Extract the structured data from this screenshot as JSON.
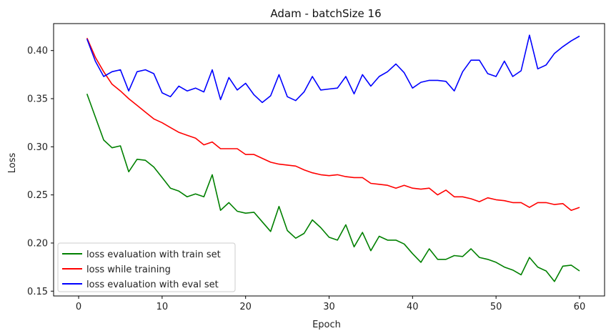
{
  "chart_data": {
    "type": "line",
    "title": "Adam - batchSize 16",
    "xlabel": "Epoch",
    "ylabel": "Loss",
    "xlim": [
      -3,
      63
    ],
    "ylim": [
      0.145,
      0.428
    ],
    "xticks": [
      0,
      10,
      20,
      30,
      40,
      50,
      60
    ],
    "xtick_labels": [
      "0",
      "10",
      "20",
      "30",
      "40",
      "50",
      "60"
    ],
    "yticks": [
      0.15,
      0.2,
      0.25,
      0.3,
      0.35,
      0.4
    ],
    "ytick_labels": [
      "0.15",
      "0.20",
      "0.25",
      "0.30",
      "0.35",
      "0.40"
    ],
    "grid": false,
    "legend_position": "lower-left",
    "x": [
      1,
      2,
      3,
      4,
      5,
      6,
      7,
      8,
      9,
      10,
      11,
      12,
      13,
      14,
      15,
      16,
      17,
      18,
      19,
      20,
      21,
      22,
      23,
      24,
      25,
      26,
      27,
      28,
      29,
      30,
      31,
      32,
      33,
      34,
      35,
      36,
      37,
      38,
      39,
      40,
      41,
      42,
      43,
      44,
      45,
      46,
      47,
      48,
      49,
      50,
      51,
      52,
      53,
      54,
      55,
      56,
      57,
      58,
      59,
      60
    ],
    "series": [
      {
        "name": "loss evaluation with train set",
        "color": "#008000",
        "values": [
          0.355,
          0.331,
          0.307,
          0.299,
          0.301,
          0.274,
          0.287,
          0.286,
          0.279,
          0.268,
          0.257,
          0.254,
          0.248,
          0.251,
          0.248,
          0.271,
          0.234,
          0.242,
          0.233,
          0.231,
          0.232,
          0.222,
          0.212,
          0.238,
          0.213,
          0.205,
          0.21,
          0.224,
          0.216,
          0.206,
          0.203,
          0.219,
          0.196,
          0.211,
          0.192,
          0.207,
          0.203,
          0.203,
          0.199,
          0.189,
          0.18,
          0.194,
          0.183,
          0.183,
          0.187,
          0.186,
          0.194,
          0.185,
          0.183,
          0.18,
          0.175,
          0.172,
          0.167,
          0.185,
          0.175,
          0.171,
          0.16,
          0.176,
          0.177,
          0.171
        ]
      },
      {
        "name": "loss while training",
        "color": "#ff0000",
        "values": [
          0.413,
          0.393,
          0.378,
          0.365,
          0.358,
          0.35,
          0.343,
          0.336,
          0.329,
          0.325,
          0.32,
          0.315,
          0.312,
          0.309,
          0.302,
          0.305,
          0.298,
          0.298,
          0.298,
          0.292,
          0.292,
          0.288,
          0.284,
          0.282,
          0.281,
          0.28,
          0.276,
          0.273,
          0.271,
          0.27,
          0.271,
          0.269,
          0.268,
          0.268,
          0.262,
          0.261,
          0.26,
          0.257,
          0.26,
          0.257,
          0.256,
          0.257,
          0.25,
          0.255,
          0.248,
          0.248,
          0.246,
          0.243,
          0.247,
          0.245,
          0.244,
          0.242,
          0.242,
          0.237,
          0.242,
          0.242,
          0.24,
          0.241,
          0.234,
          0.237
        ]
      },
      {
        "name": "loss evaluation with eval set",
        "color": "#0000ff",
        "values": [
          0.412,
          0.389,
          0.373,
          0.378,
          0.38,
          0.358,
          0.378,
          0.38,
          0.376,
          0.356,
          0.352,
          0.363,
          0.358,
          0.361,
          0.357,
          0.38,
          0.349,
          0.372,
          0.359,
          0.366,
          0.354,
          0.346,
          0.353,
          0.375,
          0.352,
          0.348,
          0.357,
          0.373,
          0.359,
          0.36,
          0.361,
          0.373,
          0.355,
          0.375,
          0.363,
          0.373,
          0.378,
          0.386,
          0.377,
          0.361,
          0.367,
          0.369,
          0.369,
          0.368,
          0.358,
          0.378,
          0.39,
          0.39,
          0.376,
          0.373,
          0.389,
          0.373,
          0.379,
          0.416,
          0.381,
          0.385,
          0.397,
          0.404,
          0.41,
          0.415
        ]
      }
    ]
  }
}
